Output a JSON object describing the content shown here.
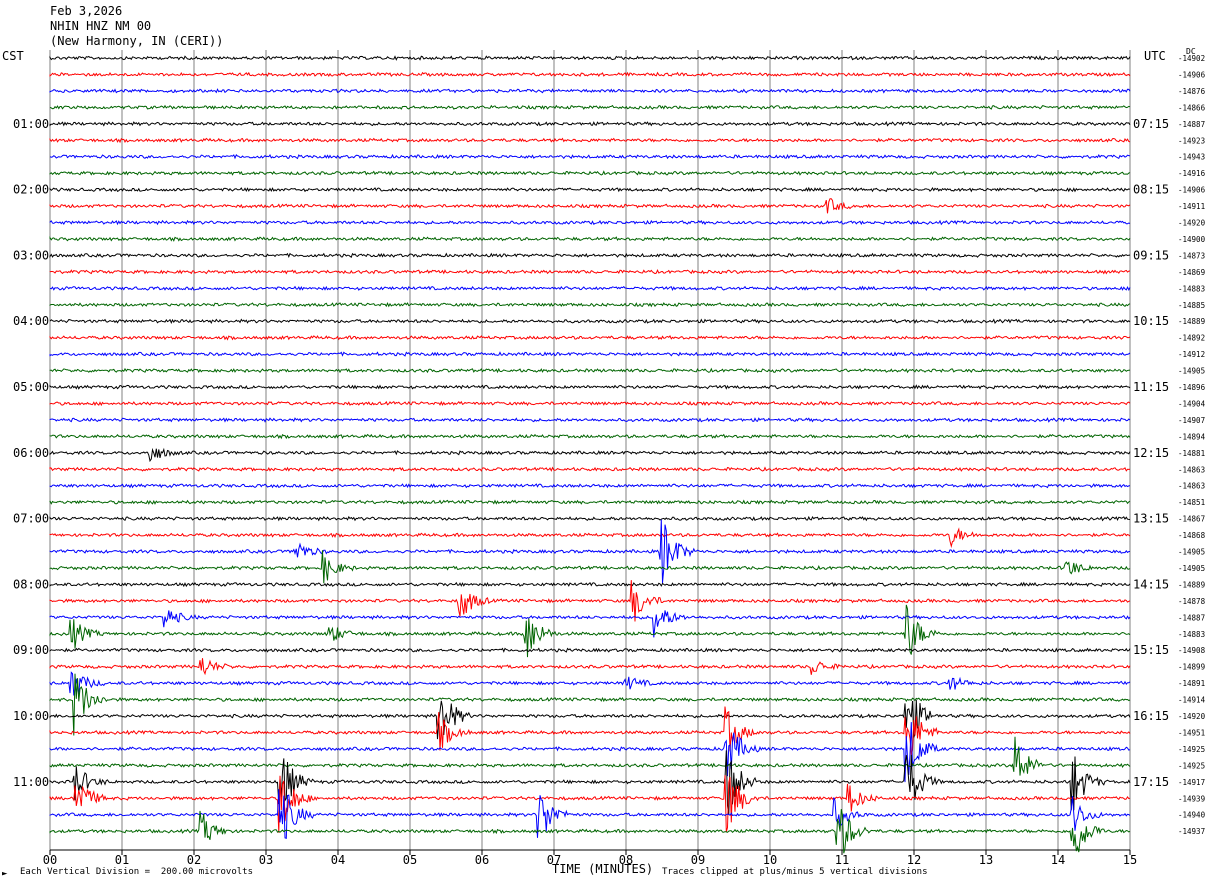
{
  "header": {
    "line1": "Feb 3,2026",
    "line2": "NHIN HNZ NM 00",
    "line3": "(New Harmony, IN (CERI))"
  },
  "left_timezone": "CST",
  "right_timezone": "UTC",
  "dc_label": "DC",
  "footer": {
    "scale_note": "Each Vertical Division =  200.00 microvolts",
    "clip_note": "Traces clipped at plus/minus 5 vertical divisions",
    "corner_mark": "►"
  },
  "colors": {
    "trace_cycle": [
      "#000000",
      "#ff0000",
      "#0000ff",
      "#006400"
    ],
    "grid": "#808080",
    "background": "#ffffff"
  },
  "chart_data": {
    "type": "line",
    "title": "",
    "xlabel": "TIME (MINUTES)",
    "x_ticks": [
      "00",
      "01",
      "02",
      "03",
      "04",
      "05",
      "06",
      "07",
      "08",
      "09",
      "10",
      "11",
      "12",
      "13",
      "14",
      "15"
    ],
    "xlim": [
      0,
      15
    ],
    "left_hour_labels": [
      "01:00",
      "02:00",
      "03:00",
      "04:00",
      "05:00",
      "06:00",
      "07:00",
      "08:00",
      "09:00",
      "10:00",
      "11:00"
    ],
    "right_hour_labels": [
      "07:15",
      "08:15",
      "09:15",
      "10:15",
      "11:15",
      "12:15",
      "13:15",
      "14:15",
      "15:15",
      "16:15",
      "17:15"
    ],
    "trace_dc_offsets": [
      -14902,
      -14906,
      -14876,
      -14866,
      -14887,
      -14923,
      -14943,
      -14916,
      -14906,
      -14911,
      -14920,
      -14900,
      -14873,
      -14869,
      -14883,
      -14885,
      -14889,
      -14892,
      -14912,
      -14905,
      -14896,
      -14904,
      -14907,
      -14894,
      -14881,
      -14863,
      -14863,
      -14851,
      -14867,
      -14868,
      -14905,
      -14905,
      -14889,
      -14878,
      -14887,
      -14883,
      -14908,
      -14899,
      -14891,
      -14914,
      -14920,
      -14951,
      -14925,
      -14925,
      -14917,
      -14939,
      -14940,
      -14937
    ],
    "events": [
      {
        "trace": 9,
        "minute": 10.8,
        "amp": 0.5
      },
      {
        "trace": 24,
        "minute": 1.4,
        "amp": 0.6
      },
      {
        "trace": 29,
        "minute": 12.5,
        "amp": 0.7
      },
      {
        "trace": 30,
        "minute": 3.4,
        "amp": 0.8
      },
      {
        "trace": 30,
        "minute": 8.5,
        "amp": 2.5
      },
      {
        "trace": 31,
        "minute": 3.8,
        "amp": 1.0
      },
      {
        "trace": 31,
        "minute": 14.1,
        "amp": 0.7
      },
      {
        "trace": 33,
        "minute": 5.7,
        "amp": 1.3
      },
      {
        "trace": 33,
        "minute": 8.1,
        "amp": 1.4
      },
      {
        "trace": 34,
        "minute": 1.6,
        "amp": 0.7
      },
      {
        "trace": 34,
        "minute": 8.4,
        "amp": 1.3
      },
      {
        "trace": 35,
        "minute": 0.3,
        "amp": 1.1
      },
      {
        "trace": 35,
        "minute": 3.9,
        "amp": 0.6
      },
      {
        "trace": 35,
        "minute": 6.6,
        "amp": 2.0
      },
      {
        "trace": 35,
        "minute": 11.9,
        "amp": 2.0
      },
      {
        "trace": 37,
        "minute": 2.1,
        "amp": 0.7
      },
      {
        "trace": 37,
        "minute": 10.6,
        "amp": 0.5
      },
      {
        "trace": 38,
        "minute": 0.3,
        "amp": 1.2
      },
      {
        "trace": 38,
        "minute": 8.0,
        "amp": 0.5
      },
      {
        "trace": 38,
        "minute": 12.5,
        "amp": 0.5
      },
      {
        "trace": 39,
        "minute": 0.35,
        "amp": 2.2
      },
      {
        "trace": 40,
        "minute": 5.4,
        "amp": 2.5
      },
      {
        "trace": 40,
        "minute": 11.9,
        "amp": 2.5
      },
      {
        "trace": 41,
        "minute": 5.4,
        "amp": 1.2
      },
      {
        "trace": 41,
        "minute": 9.4,
        "amp": 1.5
      },
      {
        "trace": 41,
        "minute": 11.9,
        "amp": 2.5
      },
      {
        "trace": 42,
        "minute": 9.4,
        "amp": 2.0
      },
      {
        "trace": 42,
        "minute": 11.9,
        "amp": 2.5
      },
      {
        "trace": 43,
        "minute": 13.4,
        "amp": 2.0
      },
      {
        "trace": 44,
        "minute": 0.35,
        "amp": 1.2
      },
      {
        "trace": 44,
        "minute": 3.2,
        "amp": 2.5
      },
      {
        "trace": 44,
        "minute": 9.4,
        "amp": 2.5
      },
      {
        "trace": 44,
        "minute": 11.9,
        "amp": 2.5
      },
      {
        "trace": 44,
        "minute": 14.2,
        "amp": 2.2
      },
      {
        "trace": 45,
        "minute": 0.35,
        "amp": 1.8
      },
      {
        "trace": 45,
        "minute": 3.2,
        "amp": 2.5
      },
      {
        "trace": 45,
        "minute": 9.4,
        "amp": 2.5
      },
      {
        "trace": 45,
        "minute": 11.1,
        "amp": 1.0
      },
      {
        "trace": 46,
        "minute": 3.2,
        "amp": 2.5
      },
      {
        "trace": 46,
        "minute": 6.8,
        "amp": 2.0
      },
      {
        "trace": 46,
        "minute": 10.9,
        "amp": 1.0
      },
      {
        "trace": 46,
        "minute": 14.2,
        "amp": 1.2
      },
      {
        "trace": 47,
        "minute": 2.1,
        "amp": 1.2
      },
      {
        "trace": 47,
        "minute": 10.95,
        "amp": 2.2
      },
      {
        "trace": 47,
        "minute": 14.2,
        "amp": 2.5
      }
    ]
  }
}
